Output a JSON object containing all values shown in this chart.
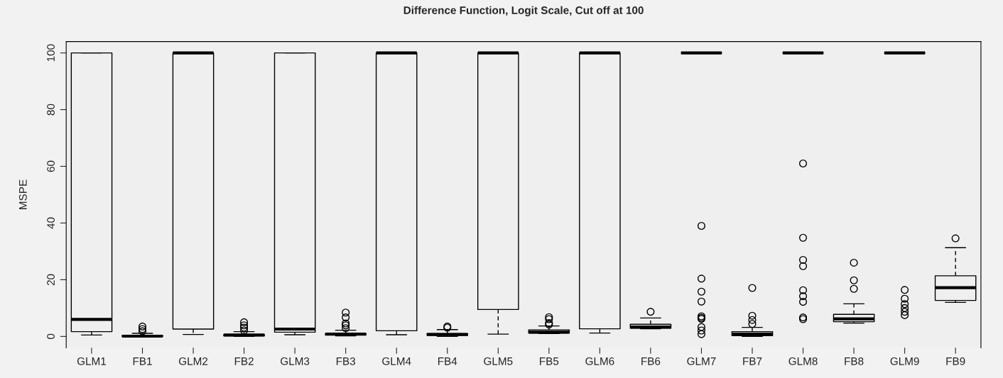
{
  "chart_data": {
    "type": "box",
    "title": "Difference Function, Logit Scale, Cut off at 100",
    "ylabel": "MSPE",
    "categories": [
      "GLM1",
      "FB1",
      "GLM2",
      "FB2",
      "GLM3",
      "FB3",
      "GLM4",
      "FB4",
      "GLM5",
      "FB5",
      "GLM6",
      "FB6",
      "GLM7",
      "FB7",
      "GLM8",
      "FB8",
      "GLM9",
      "FB9"
    ],
    "ylim": [
      -4,
      104
    ],
    "yticks": [
      0,
      20,
      40,
      60,
      80,
      100
    ],
    "grid": false,
    "line_style": "dashed",
    "boxes": [
      {
        "low": 0.5,
        "q1": 1.7,
        "median": 6,
        "q3": 100,
        "high": 100
      },
      {
        "low": 0,
        "q1": 0,
        "median": 0.1,
        "q3": 0.3,
        "high": 1.1,
        "outliers": [
          3.5,
          2.6,
          1.8
        ]
      },
      {
        "low": 0.7,
        "q1": 2.6,
        "median": 100,
        "q3": 100,
        "high": 100
      },
      {
        "low": 0,
        "q1": 0.2,
        "median": 0.5,
        "q3": 0.7,
        "high": 1.7,
        "outliers": [
          5,
          3.9,
          3.1,
          2.1
        ]
      },
      {
        "low": 0.6,
        "q1": 1.5,
        "median": 2.6,
        "q3": 100,
        "high": 100
      },
      {
        "low": 0.2,
        "q1": 0.5,
        "median": 0.8,
        "q3": 1,
        "high": 2.2,
        "outliers": [
          8.4,
          6.7,
          4.6,
          3.9,
          2.9
        ]
      },
      {
        "low": 0.6,
        "q1": 2,
        "median": 100,
        "q3": 100,
        "high": 100
      },
      {
        "low": 0,
        "q1": 0.4,
        "median": 0.7,
        "q3": 1,
        "high": 2.4,
        "outliers": [
          3.5,
          3.1
        ]
      },
      {
        "low": 0.8,
        "q1": 9.5,
        "median": 100,
        "q3": 100,
        "high": 100
      },
      {
        "low": 1,
        "q1": 1.2,
        "median": 1.5,
        "q3": 2.3,
        "high": 3.7,
        "outliers": [
          6.8,
          6.1,
          4.7,
          4.2
        ]
      },
      {
        "low": 1.2,
        "q1": 2.7,
        "median": 100,
        "q3": 100,
        "high": 100
      },
      {
        "low": 2.7,
        "q1": 2.9,
        "median": 3.3,
        "q3": 4.3,
        "high": 6.5,
        "outliers": [
          8.7
        ]
      },
      {
        "low": 100,
        "q1": 100,
        "median": 100,
        "q3": 100,
        "high": 100,
        "outliers": [
          39,
          20.4,
          15.8,
          12.3,
          7.1,
          6.6,
          6.2,
          3.3,
          2.1,
          0.8
        ]
      },
      {
        "low": 0,
        "q1": 0.25,
        "median": 0.8,
        "q3": 1.7,
        "high": 3.2,
        "outliers": [
          17.1,
          7.3,
          5.8,
          4.4
        ]
      },
      {
        "low": 100,
        "q1": 100,
        "median": 100,
        "q3": 100,
        "high": 100,
        "outliers": [
          61,
          34.8,
          27,
          24.8,
          16.3,
          14.2,
          12.2,
          6.7,
          6.1
        ]
      },
      {
        "low": 4.7,
        "q1": 5.2,
        "median": 6.2,
        "q3": 7.8,
        "high": 11.5,
        "outliers": [
          26,
          19.8,
          16.8
        ]
      },
      {
        "low": 100,
        "q1": 100,
        "median": 100,
        "q3": 100,
        "high": 100,
        "outliers": [
          16.4,
          13.3,
          11.4,
          10,
          8.7,
          7.5
        ]
      },
      {
        "low": 12,
        "q1": 12.7,
        "median": 17.2,
        "q3": 21.4,
        "high": 31.3,
        "outliers": [
          34.6
        ]
      }
    ]
  }
}
